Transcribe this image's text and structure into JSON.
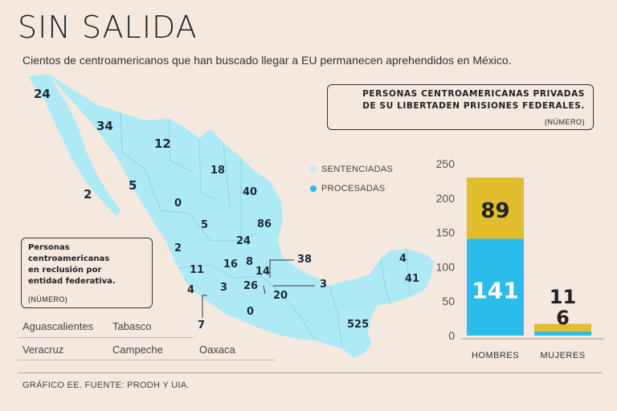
{
  "header": {
    "title": "SIN SALIDA",
    "subtitle": "Cientos de centroamericanos que han buscado llegar a EU permanecen aprehendidos en México."
  },
  "chart_box": {
    "title_line1": "PERSONAS CENTROAMERICANAS PRIVADAS",
    "title_line2": "DE SU LIBERTADEN PRISIONES FEDERALES.",
    "unit": "(NÚMERO)"
  },
  "map_box": {
    "title_line1": "Personas",
    "title_line2": "centroamericanas",
    "title_line3": "en reclusión por",
    "title_line4": "entidad federativa.",
    "unit": "(NÚMERO)"
  },
  "map_values": [
    "24",
    "34",
    "12",
    "2",
    "5",
    "0",
    "18",
    "40",
    "86",
    "5",
    "24",
    "2",
    "11",
    "16",
    "8",
    "14",
    "4",
    "3",
    "26",
    "38",
    "3",
    "20",
    "0",
    "7",
    "4",
    "41",
    "525"
  ],
  "states_list": [
    "Aguascalientes",
    "Tabasco",
    "Veracruz",
    "Campeche",
    "Oaxaca"
  ],
  "footer": "GRÁFICO EE. FUENTE: PRODH Y UIA.",
  "colors": {
    "map": "#aeeaf6",
    "sentenciadas": "#e2bd2d",
    "procesadas": "#2abde9",
    "sentenciadas_legend": "#cde7f0"
  },
  "chart_data": {
    "type": "bar",
    "stacked": true,
    "categories": [
      "HOMBRES",
      "MUJERES"
    ],
    "series": [
      {
        "name": "PROCESADAS",
        "values": [
          141,
          6
        ]
      },
      {
        "name": "SENTENCIADAS",
        "values": [
          89,
          11
        ]
      }
    ],
    "ylim": [
      0,
      250
    ],
    "yticks": [
      "0",
      "50",
      "100",
      "150",
      "200",
      "250"
    ],
    "legend": [
      "SENTENCIADAS",
      "PROCESADAS"
    ]
  }
}
